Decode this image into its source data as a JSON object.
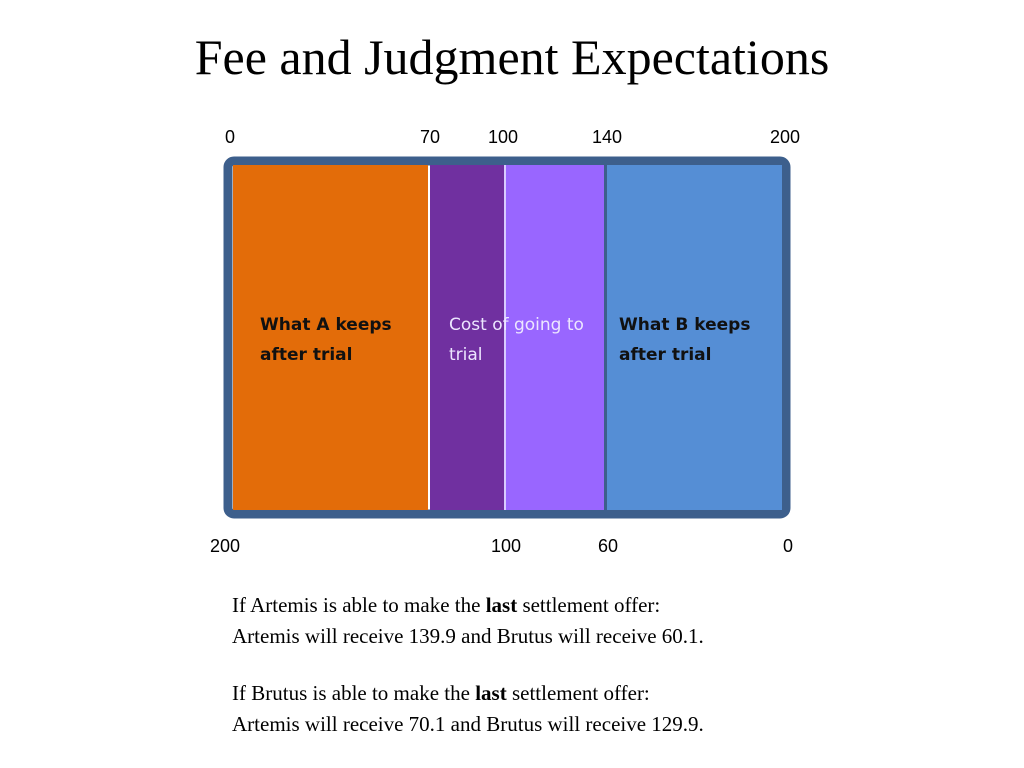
{
  "title": "Fee and Judgment Expectations",
  "top_scale": [
    "0",
    "70",
    "100",
    "140",
    "200"
  ],
  "bottom_scale": [
    "200",
    "100",
    "60",
    "0"
  ],
  "segments": [
    {
      "label": "What A keeps after trial"
    },
    {
      "label": "Cost of going to trial"
    },
    {
      "label": "What B keeps after trial"
    }
  ],
  "notes": [
    {
      "lines": [
        {
          "before": "If Artemis is able to make the ",
          "bold": "last",
          "after": " settlement offer:"
        },
        {
          "text": "Artemis will receive 139.9 and Brutus will receive 60.1."
        }
      ]
    },
    {
      "lines": [
        {
          "before": "If Brutus is able to make the ",
          "bold": "last",
          "after": " settlement offer:"
        },
        {
          "text": "Artemis will receive 70.1 and Brutus will receive 129.9."
        }
      ]
    }
  ]
}
